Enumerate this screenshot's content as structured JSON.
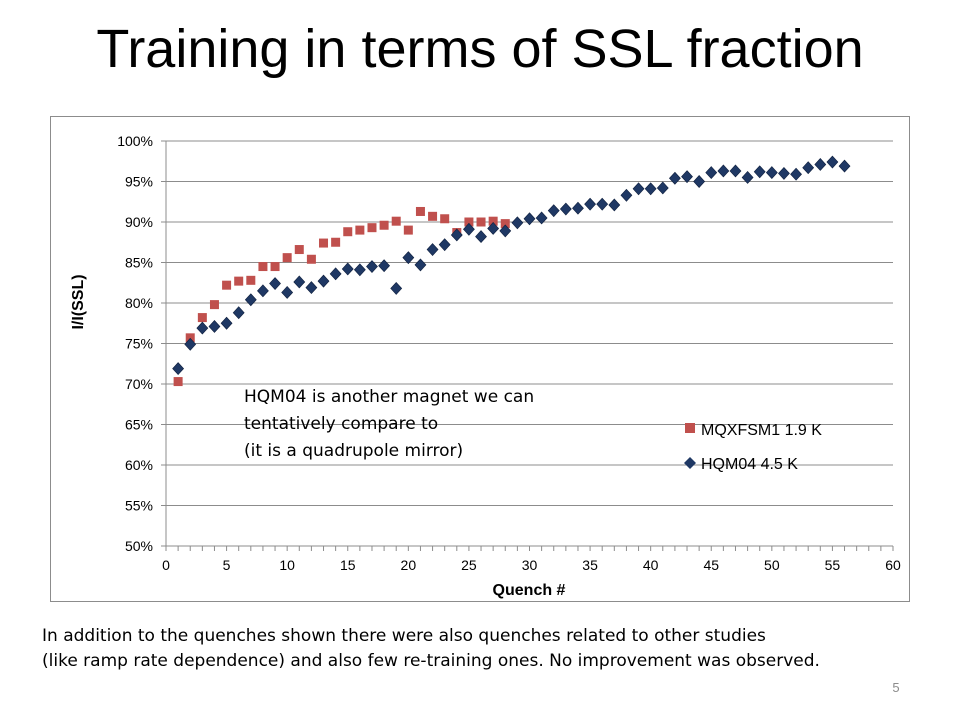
{
  "slide": {
    "title": "Training in terms of SSL fraction",
    "caption_lines": [
      "In addition to the quenches shown there were also quenches related to other studies",
      "(like ramp rate dependence) and also few re-training ones. No improvement was observed."
    ],
    "page_number": "5"
  },
  "chart_data": {
    "type": "scatter",
    "title": "",
    "xlabel": "Quench #",
    "ylabel": "I/I(SSL)",
    "xlim": [
      0,
      60
    ],
    "ylim": [
      0.5,
      1.0
    ],
    "x_ticks": [
      0,
      5,
      10,
      15,
      20,
      25,
      30,
      35,
      40,
      45,
      50,
      55,
      60
    ],
    "y_ticks": [
      "50%",
      "55%",
      "60%",
      "65%",
      "70%",
      "75%",
      "80%",
      "85%",
      "90%",
      "95%",
      "100%"
    ],
    "grid": "horizontal",
    "legend_position": "right",
    "annotation": [
      "HQM04 is another magnet we can",
      "tentatively compare to",
      "(it is a quadrupole mirror)"
    ],
    "series": [
      {
        "name": "MQXFSM1 1.9 K",
        "marker": "square",
        "color": "#c0504d",
        "x": [
          1,
          2,
          3,
          4,
          5,
          6,
          7,
          8,
          9,
          10,
          11,
          12,
          13,
          14,
          15,
          16,
          17,
          18,
          19,
          20,
          21,
          22,
          23,
          24,
          25,
          26,
          27,
          28
        ],
        "y": [
          0.703,
          0.757,
          0.782,
          0.798,
          0.822,
          0.827,
          0.828,
          0.845,
          0.845,
          0.856,
          0.866,
          0.854,
          0.874,
          0.875,
          0.888,
          0.89,
          0.893,
          0.896,
          0.901,
          0.89,
          0.913,
          0.907,
          0.904,
          0.887,
          0.9,
          0.9,
          0.901,
          0.898
        ]
      },
      {
        "name": "HQM04 4.5 K",
        "marker": "diamond",
        "color": "#1f3864",
        "x": [
          1,
          2,
          3,
          4,
          5,
          6,
          7,
          8,
          9,
          10,
          11,
          12,
          13,
          14,
          15,
          16,
          17,
          18,
          19,
          20,
          21,
          22,
          23,
          24,
          25,
          26,
          27,
          28,
          29,
          30,
          31,
          32,
          33,
          34,
          35,
          36,
          37,
          38,
          39,
          40,
          41,
          42,
          43,
          44,
          45,
          46,
          47,
          48,
          49,
          50,
          51,
          52,
          53,
          54,
          55,
          56
        ],
        "y": [
          0.719,
          0.749,
          0.769,
          0.771,
          0.775,
          0.788,
          0.804,
          0.815,
          0.824,
          0.813,
          0.826,
          0.819,
          0.827,
          0.836,
          0.842,
          0.841,
          0.845,
          0.846,
          0.818,
          0.856,
          0.847,
          0.866,
          0.872,
          0.884,
          0.891,
          0.882,
          0.892,
          0.889,
          0.899,
          0.904,
          0.905,
          0.914,
          0.916,
          0.917,
          0.922,
          0.922,
          0.921,
          0.933,
          0.941,
          0.941,
          0.942,
          0.954,
          0.956,
          0.95,
          0.961,
          0.963,
          0.963,
          0.955,
          0.962,
          0.961,
          0.96,
          0.959,
          0.967,
          0.971,
          0.974,
          0.969
        ]
      }
    ]
  }
}
